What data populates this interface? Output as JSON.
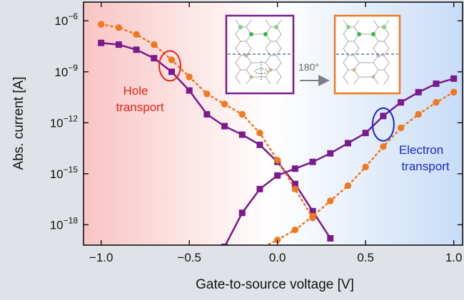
{
  "chart_data": {
    "type": "line",
    "xlabel": "Gate-to-source voltage [V]",
    "ylabel": "Abs. current [A]",
    "xlim": [
      -1.1,
      1.05
    ],
    "ylim_log10": [
      -19.2,
      -4.9
    ],
    "y_scale": "log",
    "grid": false,
    "x_ticks": [
      {
        "value": -1.0,
        "label": "−1.0"
      },
      {
        "value": -0.5,
        "label": "−0.5"
      },
      {
        "value": 0.0,
        "label": "0.0"
      },
      {
        "value": 0.5,
        "label": "0.5"
      },
      {
        "value": 1.0,
        "label": "1.0"
      }
    ],
    "y_ticks": [
      {
        "exp": -6,
        "base": "10",
        "sup": "−6"
      },
      {
        "exp": -9,
        "base": "10",
        "sup": "−9"
      },
      {
        "exp": -12,
        "base": "10",
        "sup": "−12"
      },
      {
        "exp": -15,
        "base": "10",
        "sup": "−15"
      },
      {
        "exp": -18,
        "base": "10",
        "sup": "−18"
      }
    ],
    "background": {
      "left": "#f9c4c4",
      "middle": "#ffffff",
      "right": "#c8dcf7"
    },
    "series": [
      {
        "style": "solid",
        "marker": "square",
        "color": "#7a1a8c",
        "x": [
          -1.0,
          -0.9,
          -0.8,
          -0.7,
          -0.6,
          -0.5,
          -0.4,
          -0.3,
          -0.2,
          -0.1,
          0.0,
          0.1,
          0.2,
          0.3
        ],
        "log10_y": [
          -7.3,
          -7.4,
          -7.7,
          -8.2,
          -9.0,
          -10.1,
          -11.5,
          -12.2,
          -12.7,
          -13.3,
          -14.3,
          -15.6,
          -17.2,
          -18.8
        ]
      },
      {
        "style": "solid",
        "marker": "square",
        "color": "#7a1a8c",
        "x": [
          -0.3,
          -0.2,
          -0.1,
          0.0,
          0.1,
          0.2,
          0.3,
          0.4,
          0.5,
          0.6,
          0.7,
          0.8,
          0.9,
          1.0
        ],
        "log10_y": [
          -19.3,
          -17.3,
          -15.9,
          -15.1,
          -14.7,
          -14.3,
          -13.8,
          -13.2,
          -12.6,
          -11.6,
          -10.8,
          -10.2,
          -9.7,
          -9.4
        ]
      },
      {
        "style": "dotted",
        "marker": "circle",
        "color": "#f0781e",
        "x": [
          -1.0,
          -0.9,
          -0.8,
          -0.7,
          -0.6,
          -0.5,
          -0.4,
          -0.3,
          -0.2,
          -0.1,
          0.0,
          0.1,
          0.2
        ],
        "log10_y": [
          -6.2,
          -6.4,
          -6.8,
          -7.4,
          -8.3,
          -9.3,
          -10.3,
          -10.9,
          -11.5,
          -12.6,
          -14.2,
          -15.9,
          -17.6
        ]
      },
      {
        "style": "dotted",
        "marker": "circle",
        "color": "#f0781e",
        "x": [
          -0.1,
          0.0,
          0.1,
          0.2,
          0.3,
          0.4,
          0.5,
          0.6,
          0.7,
          0.8,
          0.9,
          1.0
        ],
        "log10_y": [
          -19.4,
          -18.9,
          -18.3,
          -17.5,
          -16.6,
          -15.7,
          -14.6,
          -13.4,
          -12.3,
          -11.5,
          -10.8,
          -10.2
        ]
      }
    ],
    "annotations": {
      "hole": {
        "line1": "Hole",
        "line2": "transport",
        "color": "#e8241c",
        "at_x": -0.61,
        "at_log10_y": -8.65
      },
      "electron": {
        "line1": "Electron",
        "line2": "transport",
        "color": "#1a28c8",
        "at_x": 0.6,
        "at_log10_y": -12.1
      }
    },
    "inset": {
      "rotation_label": "180°",
      "left_frame_color": "#7a1a8c",
      "right_frame_color": "#f0781e"
    }
  }
}
